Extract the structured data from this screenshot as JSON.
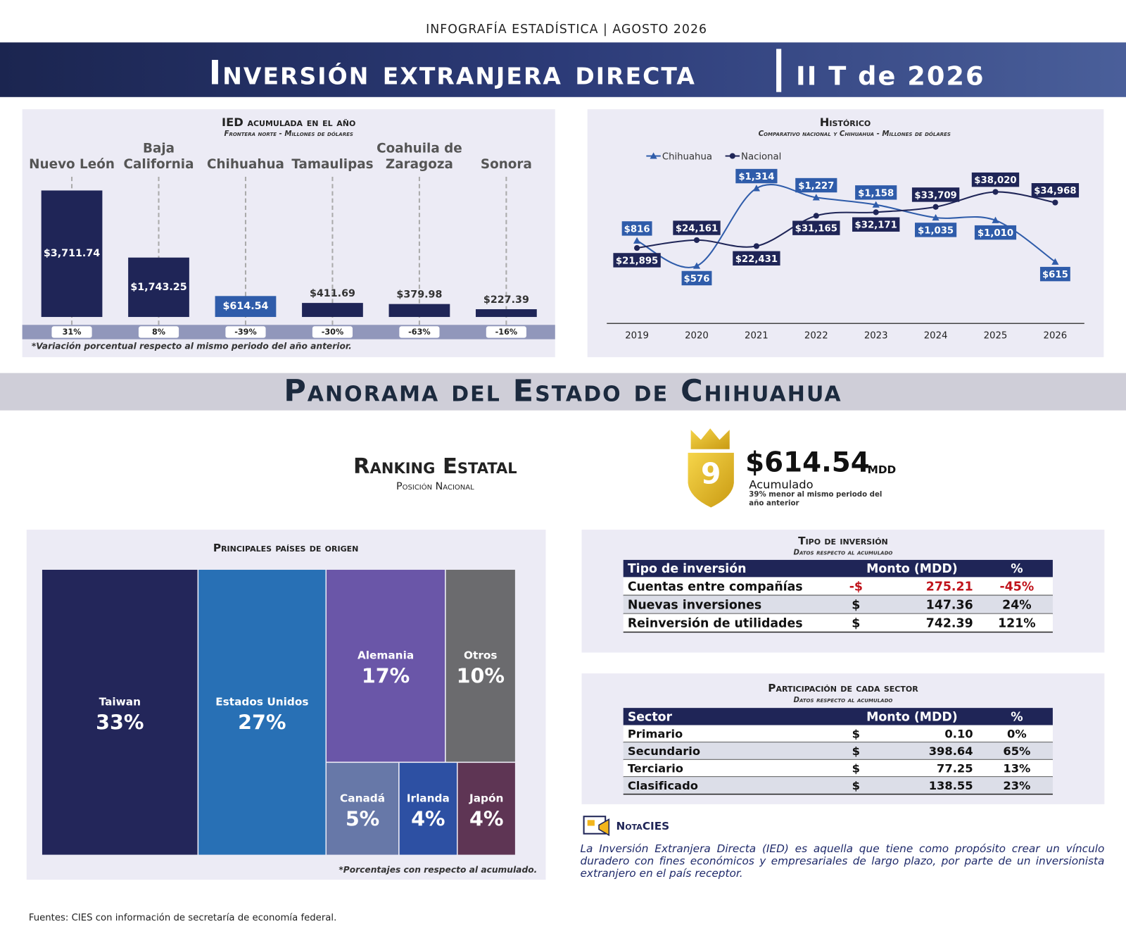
{
  "header": {
    "kicker": "INFOGRAFÍA ESTADÍSTICA | AGOSTO 2026",
    "title": "Inversión extranjera directa",
    "period": "II T de 2026"
  },
  "chart_data": [
    {
      "type": "bar",
      "title": "IED acumulada en el año",
      "subtitle": "Frontera norte - Millones de dólares",
      "categories": [
        "Nuevo León",
        "Baja California",
        "Chihuahua",
        "Tamaulipas",
        "Coahuila de Zaragoza",
        "Sonora"
      ],
      "values": [
        3711.74,
        1743.25,
        614.54,
        411.69,
        379.98,
        227.39
      ],
      "value_labels": [
        "$3,711.74",
        "$1,743.25",
        "$614.54",
        "$411.69",
        "$379.98",
        "$227.39"
      ],
      "colors": [
        "#1f2557",
        "#1f2557",
        "#2f5caa",
        "#1f2557",
        "#1f2557",
        "#1f2557"
      ],
      "variation": [
        "31%",
        "8%",
        "-39%",
        "-30%",
        "-63%",
        "-16%"
      ],
      "note": "*Variación porcentual respecto al mismo periodo del año anterior."
    },
    {
      "type": "line",
      "title": "Histórico",
      "subtitle": "Comparativo nacional y Chihuahua - Millones de dólares",
      "categories": [
        "2019",
        "2020",
        "2021",
        "2022",
        "2023",
        "2024",
        "2025",
        "2026"
      ],
      "series": [
        {
          "name": "Chihuahua",
          "color": "#2f5caa",
          "values": [
            816,
            576,
            1314,
            1227,
            1158,
            1035,
            1010,
            615
          ],
          "value_labels": [
            "$816",
            "$576",
            "$1,314",
            "$1,227",
            "$1,158",
            "$1,035",
            "$1,010",
            "$615"
          ]
        },
        {
          "name": "Nacional",
          "color": "#1f2557",
          "axis": "y2",
          "values": [
            21895,
            24161,
            22431,
            31165,
            32171,
            33709,
            38020,
            34968
          ],
          "value_labels": [
            "$21,895",
            "$24,161",
            "$22,431",
            "$31,165",
            "$32,171",
            "$33,709",
            "$38,020",
            "$34,968"
          ]
        }
      ],
      "legend": "top-left"
    },
    {
      "type": "treemap",
      "title": "Principales países de origen",
      "categories": [
        "Taiwan",
        "Estados Unidos",
        "Alemania",
        "Otros",
        "Canadá",
        "Irlanda",
        "Japón"
      ],
      "values": [
        33,
        27,
        17,
        10,
        5,
        4,
        4
      ],
      "value_labels": [
        "33%",
        "27%",
        "17%",
        "10%",
        "5%",
        "4%",
        "4%"
      ],
      "colors": [
        "#23265a",
        "#2870b5",
        "#6a56a8",
        "#6b6b6e",
        "#6778a8",
        "#2d50a3",
        "#5e3554"
      ],
      "note": "*Porcentajes con respecto al acumulado."
    }
  ],
  "section": "Panorama del Estado de Chihuahua",
  "ranking": {
    "title": "Ranking Estatal",
    "subtitle": "Posición Nacional",
    "position": "9",
    "amount": "$614.54",
    "unit": "MDD",
    "label": "Acumulado",
    "note": "39% menor al mismo periodo del año anterior"
  },
  "investment_type": {
    "title": "Tipo de inversión",
    "subtitle": "Datos respecto al acumulado",
    "headers": [
      "Tipo de inversión",
      "Monto (MDD)",
      "%"
    ],
    "rows": [
      [
        "Cuentas entre compañías",
        "-$",
        "275.21",
        "-45%"
      ],
      [
        "Nuevas inversiones",
        "$",
        "147.36",
        "24%"
      ],
      [
        "Reinversión de utilidades",
        "$",
        "742.39",
        "121%"
      ]
    ]
  },
  "sectors": {
    "title": "Participación de cada sector",
    "subtitle": "Datos respecto al acumulado",
    "headers": [
      "Sector",
      "Monto (MDD)",
      "%"
    ],
    "rows": [
      [
        "Primario",
        "$",
        "0.10",
        "0%"
      ],
      [
        "Secundario",
        "$",
        "398.64",
        "65%"
      ],
      [
        "Terciario",
        "$",
        "77.25",
        "13%"
      ],
      [
        "Clasificado",
        "$",
        "138.55",
        "23%"
      ]
    ]
  },
  "note": {
    "title": "NotaCIES",
    "text": "La Inversión Extranjera Directa (IED) es aquella que tiene como propósito crear un vínculo duradero con fines económicos y empresariales de largo plazo, por parte de un inversionista extranjero en el país receptor."
  },
  "footer": "Fuentes: CIES con información de secretaría de economía federal."
}
